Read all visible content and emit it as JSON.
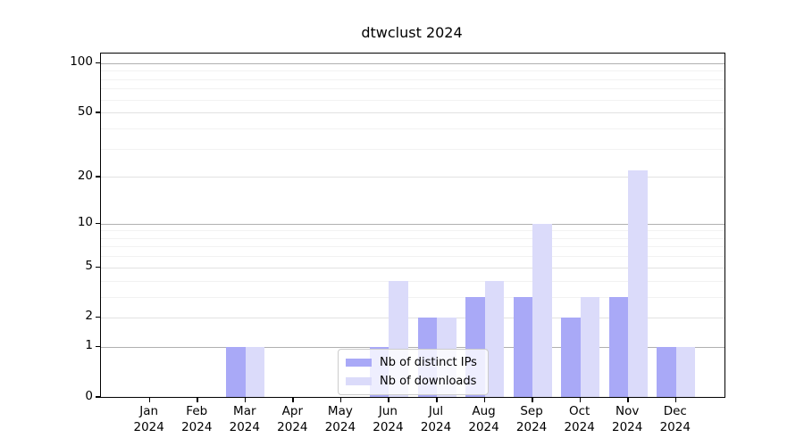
{
  "chart_data": {
    "type": "bar",
    "title": "dtwclust 2024",
    "categories": [
      "Jan",
      "Feb",
      "Mar",
      "Apr",
      "May",
      "Jun",
      "Jul",
      "Aug",
      "Sep",
      "Oct",
      "Nov",
      "Dec"
    ],
    "category_year": "2024",
    "series": [
      {
        "name": "Nb of distinct IPs",
        "color": "#a9a9f7",
        "values": [
          0,
          0,
          1,
          0,
          0,
          1,
          2,
          3,
          3,
          2,
          3,
          1
        ]
      },
      {
        "name": "Nb of downloads",
        "color": "#dbdbfa",
        "values": [
          0,
          0,
          1,
          0,
          0,
          4,
          2,
          4,
          10,
          3,
          22,
          1
        ]
      }
    ],
    "yscale": "log1p",
    "yticks": [
      0,
      1,
      2,
      5,
      10,
      20,
      50,
      100
    ],
    "ylim": [
      0,
      114
    ],
    "grid": "on",
    "legend_position": "lower center",
    "colors": {
      "axis_frame": "#000000",
      "grid_major": "#b0b0b0",
      "grid_semi": "#e2e2e2",
      "grid_minor": "#f2f2f2"
    },
    "grid_semi_values": [
      2,
      5,
      20,
      50
    ],
    "grid_minor_values": [
      3,
      4,
      6,
      7,
      8,
      9,
      30,
      40,
      60,
      70,
      80,
      90
    ],
    "grid_major_values": [
      1,
      10,
      100
    ]
  }
}
